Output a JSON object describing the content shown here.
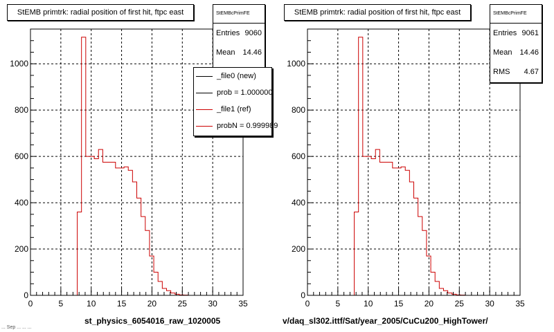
{
  "chart_data": [
    {
      "type": "bar",
      "title": "StEMB primtrk: radial position of first hit, ftpc east",
      "xlabel": "st_physics_6054016_raw_1020005",
      "ylabel": "",
      "xlim": [
        0,
        35
      ],
      "ylim": [
        0,
        1150
      ],
      "grid": true,
      "x_ticks": [
        "0",
        "5",
        "10",
        "15",
        "20",
        "25",
        "30",
        "35"
      ],
      "y_ticks": [
        "0",
        "200",
        "400",
        "600",
        "800",
        "1000"
      ],
      "bin_width": 0.7,
      "series": [
        {
          "name": "_file1 (ref)",
          "color": "#cc0000",
          "values": [
            0,
            0,
            0,
            0,
            0,
            0,
            0,
            0,
            0,
            0,
            0,
            360,
            1115,
            600,
            600,
            590,
            630,
            575,
            575,
            575,
            550,
            550,
            555,
            540,
            490,
            420,
            340,
            280,
            170,
            100,
            60,
            30,
            20,
            10,
            5,
            2,
            1,
            0,
            0,
            0,
            0,
            0,
            0,
            0,
            0,
            0,
            0,
            0,
            0,
            0
          ]
        }
      ],
      "stats": {
        "header": "StEMBcPrimFE",
        "entries_label": "Entries",
        "entries": "9060",
        "mean_label": "Mean",
        "mean": "14.46"
      },
      "legend": [
        {
          "label": "_file0 (new)",
          "color": "#000000"
        },
        {
          "label": "prob = 1.000000",
          "color": "#000000"
        },
        {
          "label": "_file1 (ref)",
          "color": "#cc0000"
        },
        {
          "label": "probN = 0.999989",
          "color": "#cc0000"
        }
      ],
      "corner_note": "... Sep ... ... ..."
    },
    {
      "type": "bar",
      "title": "StEMB primtrk: radial position of first hit, ftpc east",
      "xlabel": "v/daq_sl302.ittf/Sat/year_2005/CuCu200_HighTower/",
      "ylabel": "",
      "xlim": [
        0,
        35
      ],
      "ylim": [
        0,
        1150
      ],
      "grid": true,
      "x_ticks": [
        "0",
        "5",
        "10",
        "15",
        "20",
        "25",
        "30",
        "35"
      ],
      "y_ticks": [
        "0",
        "200",
        "400",
        "600",
        "800",
        "1000"
      ],
      "bin_width": 0.7,
      "series": [
        {
          "name": "",
          "color": "#cc0000",
          "values": [
            0,
            0,
            0,
            0,
            0,
            0,
            0,
            0,
            0,
            0,
            0,
            360,
            1115,
            600,
            600,
            590,
            630,
            575,
            575,
            575,
            550,
            550,
            555,
            540,
            490,
            420,
            340,
            280,
            170,
            100,
            60,
            30,
            20,
            10,
            5,
            2,
            1,
            0,
            0,
            0,
            0,
            0,
            0,
            0,
            0,
            0,
            0,
            0,
            0,
            0
          ]
        }
      ],
      "stats": {
        "header": "StEMBcPrimFE",
        "entries_label": "Entries",
        "entries": "9061",
        "mean_label": "Mean",
        "mean": "14.46",
        "rms_label": "RMS",
        "rms": "4.67"
      }
    }
  ]
}
